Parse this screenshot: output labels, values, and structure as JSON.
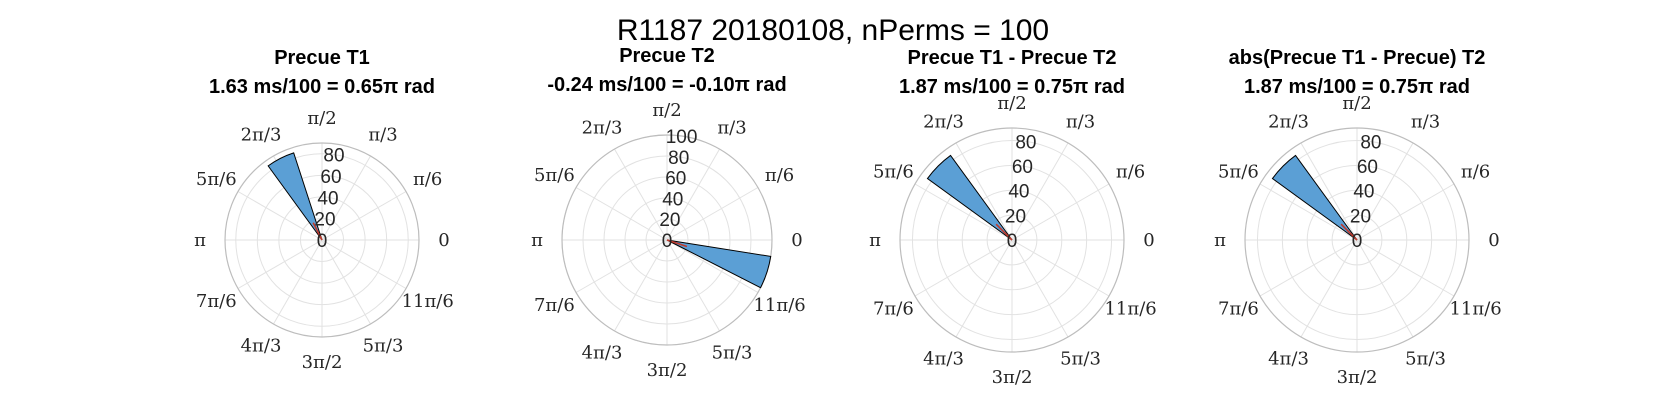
{
  "figure": {
    "title": "R1187 20180108, nPerms = 100"
  },
  "angle_labels": [
    "0",
    "π/6",
    "π/3",
    "π/2",
    "2π/3",
    "5π/6",
    "π",
    "7π/6",
    "4π/3",
    "3π/2",
    "5π/3",
    "11π/6"
  ],
  "colors": {
    "bar_fill": "#5B9FD5",
    "bar_edge": "#000000",
    "mean_line": "#C0392B",
    "grid": "#E2E2E2",
    "outer_ring": "#BDBDBD",
    "text": "#262626"
  },
  "chart_data": [
    {
      "type": "polar-histogram",
      "title": "Precue T1",
      "subtitle": "1.63 ms/100 = 0.65π rad",
      "rlim": [
        0,
        90
      ],
      "rticks": [
        0,
        20,
        40,
        60,
        80
      ],
      "rtick_labels": [
        "0",
        "20",
        "40",
        "60",
        "80"
      ],
      "bars": [
        {
          "theta_start_pi": 0.6,
          "theta_end_pi": 0.7,
          "count": 85
        }
      ],
      "mean_angle_pi": 0.65,
      "mean_length": 18
    },
    {
      "type": "polar-histogram",
      "title": "Precue T2",
      "subtitle": "-0.24 ms/100 = -0.10π rad",
      "rlim": [
        0,
        100
      ],
      "rticks": [
        0,
        20,
        40,
        60,
        80,
        100
      ],
      "rtick_labels": [
        "0",
        "20",
        "40",
        "60",
        "80",
        "100"
      ],
      "bars": [
        {
          "theta_start_pi": -0.15,
          "theta_end_pi": -0.05,
          "count": 100
        }
      ],
      "mean_angle_pi": -0.1,
      "mean_length": 20
    },
    {
      "type": "polar-histogram",
      "title": "Precue T1 - Precue T2",
      "subtitle": "1.87 ms/100 = 0.75π rad",
      "rlim": [
        0,
        90
      ],
      "rticks": [
        0,
        20,
        40,
        60,
        80
      ],
      "rtick_labels": [
        "0",
        "20",
        "40",
        "60",
        "80"
      ],
      "bars": [
        {
          "theta_start_pi": 0.7,
          "theta_end_pi": 0.8,
          "count": 84
        }
      ],
      "mean_angle_pi": 0.75,
      "mean_length": 18
    },
    {
      "type": "polar-histogram",
      "title": "abs(Precue T1 - Precue) T2",
      "subtitle": "1.87 ms/100 = 0.75π rad",
      "rlim": [
        0,
        90
      ],
      "rticks": [
        0,
        20,
        40,
        60,
        80
      ],
      "rtick_labels": [
        "0",
        "20",
        "40",
        "60",
        "80"
      ],
      "bars": [
        {
          "theta_start_pi": 0.7,
          "theta_end_pi": 0.8,
          "count": 84
        }
      ],
      "mean_angle_pi": 0.75,
      "mean_length": 18
    }
  ]
}
